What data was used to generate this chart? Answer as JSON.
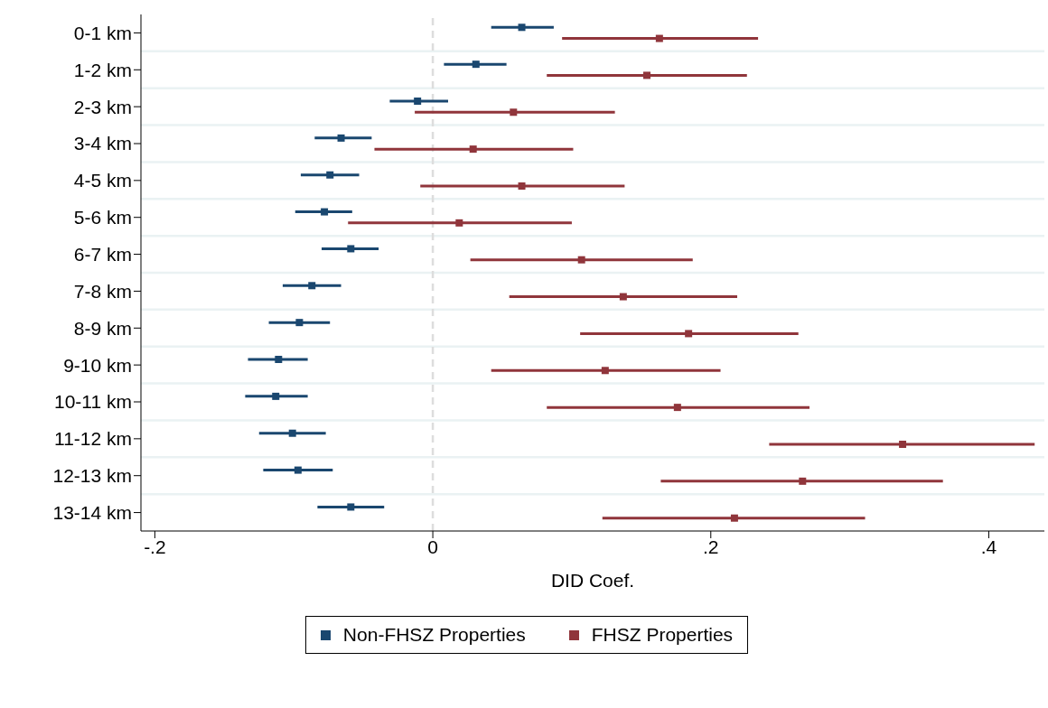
{
  "chart_data": {
    "type": "scatter",
    "orientation": "horizontal",
    "xlabel": "DID Coef.",
    "categories": [
      "0-1 km",
      "1-2 km",
      "2-3 km",
      "3-4 km",
      "4-5 km",
      "5-6 km",
      "6-7 km",
      "7-8 km",
      "8-9 km",
      "9-10 km",
      "10-11 km",
      "11-12 km",
      "12-13 km",
      "13-14 km"
    ],
    "series": [
      {
        "name": "Non-FHSZ Properties",
        "color": "#1a476f",
        "values": [
          0.064,
          0.031,
          -0.011,
          -0.066,
          -0.074,
          -0.078,
          -0.059,
          -0.087,
          -0.096,
          -0.111,
          -0.113,
          -0.101,
          -0.097,
          -0.059
        ],
        "errors": [
          [
            0.042,
            0.087
          ],
          [
            0.008,
            0.053
          ],
          [
            -0.031,
            0.011
          ],
          [
            -0.085,
            -0.044
          ],
          [
            -0.095,
            -0.053
          ],
          [
            -0.099,
            -0.058
          ],
          [
            -0.08,
            -0.039
          ],
          [
            -0.108,
            -0.066
          ],
          [
            -0.118,
            -0.074
          ],
          [
            -0.133,
            -0.09
          ],
          [
            -0.135,
            -0.09
          ],
          [
            -0.125,
            -0.077
          ],
          [
            -0.122,
            -0.072
          ],
          [
            -0.083,
            -0.035
          ]
        ]
      },
      {
        "name": "FHSZ Properties",
        "color": "#90353b",
        "values": [
          0.163,
          0.154,
          0.058,
          0.029,
          0.064,
          0.019,
          0.107,
          0.137,
          0.184,
          0.124,
          0.176,
          0.338,
          0.266,
          0.217
        ],
        "errors": [
          [
            0.093,
            0.234
          ],
          [
            0.082,
            0.226
          ],
          [
            -0.013,
            0.131
          ],
          [
            -0.042,
            0.101
          ],
          [
            -0.009,
            0.138
          ],
          [
            -0.061,
            0.1
          ],
          [
            0.027,
            0.187
          ],
          [
            0.055,
            0.219
          ],
          [
            0.106,
            0.263
          ],
          [
            0.042,
            0.207
          ],
          [
            0.082,
            0.271
          ],
          [
            0.242,
            0.433
          ],
          [
            0.164,
            0.367
          ],
          [
            0.122,
            0.311
          ]
        ]
      }
    ],
    "xlim": [
      -0.21,
      0.44
    ],
    "xticks": [
      {
        "value": -0.2,
        "label": "-.2"
      },
      0,
      {
        "value": 0.2,
        "label": ".2"
      },
      {
        "value": 0.4,
        "label": ".4"
      }
    ],
    "ref_lines": [
      {
        "axis": "x",
        "value": 0,
        "color": "#dddddd",
        "line_style": "dashed"
      }
    ],
    "grid": true,
    "marker": "square",
    "legend": "bottom"
  }
}
